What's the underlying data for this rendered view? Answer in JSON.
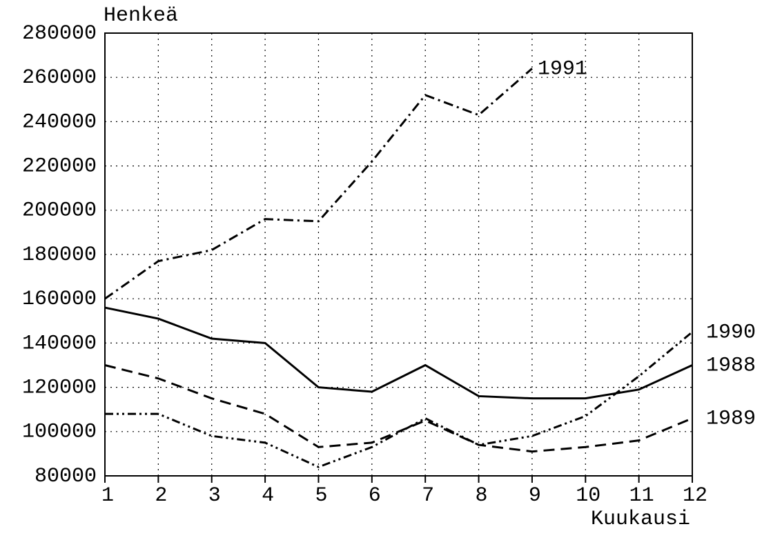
{
  "chart_data": {
    "type": "line",
    "y_label": "Henkeä",
    "x_label": "Kuukausi",
    "x": [
      1,
      2,
      3,
      4,
      5,
      6,
      7,
      8,
      9,
      10,
      11,
      12
    ],
    "xlim": [
      1,
      12
    ],
    "xticks": [
      1,
      2,
      3,
      4,
      5,
      6,
      7,
      8,
      9,
      10,
      11,
      12
    ],
    "ylim": [
      80000,
      280000
    ],
    "yticks": [
      80000,
      100000,
      120000,
      140000,
      160000,
      180000,
      200000,
      220000,
      240000,
      260000,
      280000
    ],
    "grid": true,
    "series": [
      {
        "name": "1991",
        "color": "#000000",
        "dash": "dashdot",
        "values": [
          160000,
          177000,
          182000,
          196000,
          195000,
          222000,
          252000,
          243000,
          264000,
          null,
          null,
          null
        ]
      },
      {
        "name": "1990",
        "color": "#000000",
        "dash": "dashdotdot",
        "values": [
          108000,
          108000,
          98000,
          95000,
          84000,
          93000,
          106000,
          94000,
          98000,
          107000,
          125000,
          145000
        ]
      },
      {
        "name": "1988",
        "color": "#000000",
        "dash": "solid",
        "values": [
          156000,
          151000,
          142000,
          140000,
          120000,
          118000,
          130000,
          116000,
          115000,
          115000,
          119000,
          130000
        ]
      },
      {
        "name": "1989",
        "color": "#000000",
        "dash": "dashed",
        "values": [
          130000,
          124000,
          115000,
          108000,
          93000,
          95000,
          105000,
          94000,
          91000,
          93000,
          96000,
          106000
        ]
      }
    ]
  }
}
